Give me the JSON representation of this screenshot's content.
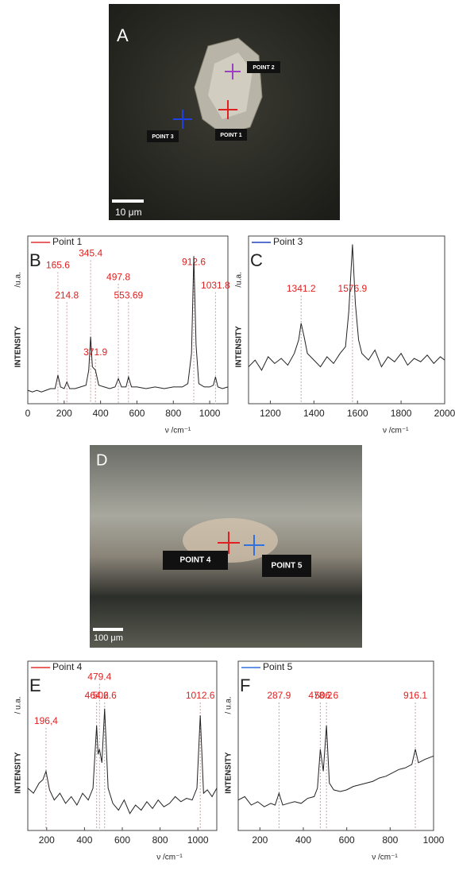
{
  "images": [
    {
      "panel": "A",
      "points": [
        "POINT 2",
        "POINT 1",
        "POINT 3"
      ],
      "scale": "10 μm"
    },
    {
      "panel": "D",
      "points": [
        "POINT 4",
        "POINT 5"
      ],
      "scale": "100 μm"
    }
  ],
  "chart_data": [
    {
      "type": "line",
      "panel": "B",
      "line_color": "#222",
      "series": [
        {
          "name": "Point 1",
          "color": "#e03030",
          "values": [
            8,
            7,
            8,
            7,
            8,
            9,
            9,
            17,
            10,
            9,
            13,
            9,
            9,
            10,
            11,
            20,
            40,
            22,
            20,
            11,
            10,
            9,
            10,
            15,
            10,
            10,
            16,
            10,
            10,
            9,
            10,
            9,
            10,
            10,
            12,
            30,
            88,
            35,
            12,
            10,
            10,
            11,
            16,
            10,
            9,
            10
          ]
        }
      ],
      "x": [
        0,
        25,
        50,
        75,
        100,
        125,
        150,
        165.6,
        180,
        200,
        214.8,
        230,
        260,
        290,
        320,
        335,
        345.4,
        355,
        371.9,
        390,
        420,
        450,
        480,
        497.8,
        515,
        540,
        553.69,
        570,
        600,
        650,
        700,
        750,
        800,
        850,
        880,
        900,
        912.6,
        925,
        940,
        970,
        1000,
        1020,
        1031.8,
        1045,
        1070,
        1100
      ],
      "xlim": [
        0,
        1100
      ],
      "xticks": [
        0,
        200,
        400,
        600,
        800,
        1000
      ],
      "ylim": [
        0,
        100
      ],
      "x_label": "ν /cm⁻¹",
      "y_label": "INTENSITY",
      "y_unit": "/u.a.",
      "annotations": [
        165.6,
        214.8,
        345.4,
        371.9,
        497.8,
        553.69,
        912.6,
        1031.8
      ]
    },
    {
      "type": "line",
      "panel": "C",
      "line_color": "#222",
      "series": [
        {
          "name": "Point 3",
          "color": "#2040c0",
          "values": [
            22,
            26,
            20,
            28,
            24,
            27,
            23,
            30,
            38,
            48,
            40,
            30,
            26,
            22,
            28,
            24,
            30,
            34,
            55,
            95,
            60,
            38,
            30,
            26,
            32,
            22,
            28,
            25,
            30,
            23,
            27,
            25,
            29,
            24,
            28,
            26
          ]
        }
      ],
      "x": [
        1100,
        1130,
        1160,
        1190,
        1220,
        1250,
        1280,
        1310,
        1330,
        1341.2,
        1355,
        1370,
        1400,
        1430,
        1460,
        1490,
        1520,
        1545,
        1560,
        1576.9,
        1590,
        1605,
        1620,
        1650,
        1680,
        1710,
        1740,
        1770,
        1800,
        1830,
        1860,
        1890,
        1920,
        1950,
        1980,
        2000
      ],
      "xlim": [
        1100,
        2000
      ],
      "xticks": [
        1200,
        1400,
        1600,
        1800,
        2000
      ],
      "ylim": [
        0,
        100
      ],
      "x_label": "ν /cm⁻¹",
      "y_label": "INTENSITY",
      "y_unit": "/u.a.",
      "annotations": [
        1341.2,
        1576.9
      ]
    },
    {
      "type": "line",
      "panel": "E",
      "line_color": "#222",
      "series": [
        {
          "name": "Point 4",
          "color": "#e03030",
          "values": [
            25,
            22,
            28,
            30,
            35,
            24,
            18,
            22,
            16,
            20,
            15,
            22,
            18,
            25,
            62,
            45,
            48,
            40,
            72,
            25,
            16,
            12,
            18,
            10,
            15,
            12,
            17,
            13,
            18,
            14,
            16,
            20,
            17,
            19,
            18,
            25,
            68,
            22,
            24,
            20,
            25
          ]
        }
      ],
      "x": [
        100,
        130,
        160,
        180,
        196.4,
        215,
        240,
        270,
        300,
        330,
        360,
        390,
        420,
        445,
        464.2,
        472,
        479.4,
        492,
        506.6,
        525,
        550,
        580,
        610,
        640,
        670,
        700,
        730,
        760,
        790,
        820,
        850,
        880,
        910,
        940,
        970,
        995,
        1012.6,
        1030,
        1050,
        1075,
        1100
      ],
      "xlim": [
        100,
        1100
      ],
      "xticks": [
        200,
        400,
        600,
        800,
        1000
      ],
      "ylim": [
        0,
        100
      ],
      "x_label": "ν /cm⁻¹",
      "y_label": "INTENSITY",
      "y_unit": "/ u.a.",
      "annotations": [
        {
          "value": 196.4,
          "label": "196,4"
        },
        464.2,
        479.4,
        506.6,
        1012.6
      ]
    },
    {
      "type": "line",
      "panel": "F",
      "line_color": "#222",
      "series": [
        {
          "name": "Point 5",
          "color": "#3070e0",
          "values": [
            18,
            20,
            15,
            17,
            14,
            16,
            15,
            22,
            15,
            16,
            17,
            16,
            19,
            20,
            25,
            48,
            35,
            62,
            28,
            24,
            23,
            24,
            26,
            27,
            28,
            29,
            31,
            32,
            34,
            36,
            37,
            39,
            48,
            40,
            42,
            44
          ]
        }
      ],
      "x": [
        100,
        130,
        160,
        190,
        220,
        250,
        270,
        287.9,
        305,
        330,
        360,
        390,
        420,
        450,
        465,
        478.2,
        492,
        506.6,
        520,
        540,
        570,
        600,
        630,
        660,
        690,
        720,
        750,
        780,
        810,
        840,
        870,
        900,
        916.1,
        930,
        960,
        1000
      ],
      "xlim": [
        100,
        1000
      ],
      "xticks": [
        200,
        400,
        600,
        800,
        1000
      ],
      "ylim": [
        0,
        100
      ],
      "x_label": "ν /cm⁻¹",
      "y_label": "INTENSITY",
      "y_unit": "/ u.a.",
      "annotations": [
        287.9,
        478.2,
        506.6,
        916.1
      ]
    }
  ]
}
